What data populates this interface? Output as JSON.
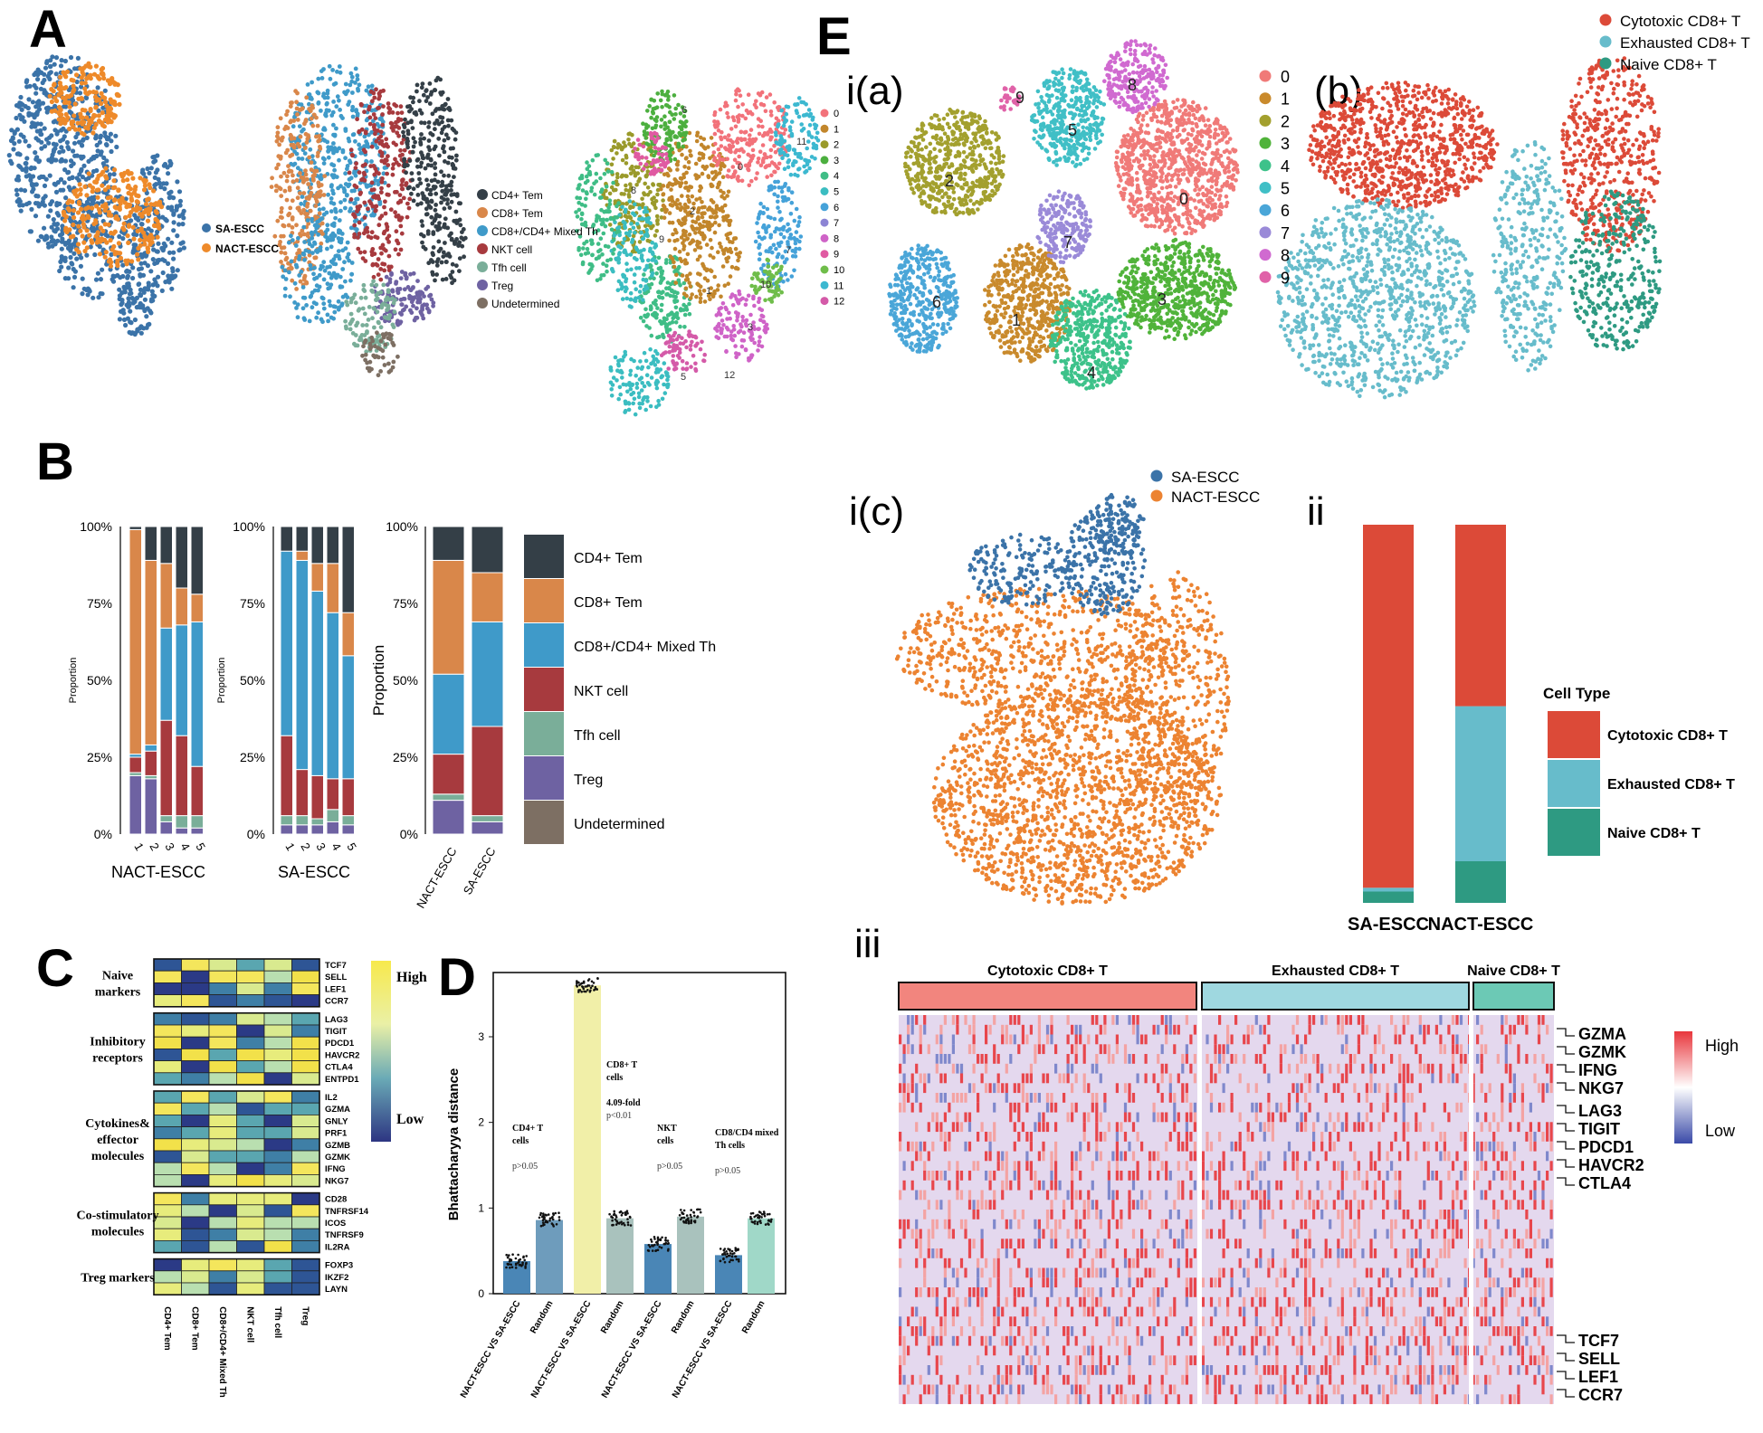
{
  "panels": {
    "A": {
      "letter": "A",
      "groups_legend": [
        "SA-ESCC",
        "NACT-ESCC"
      ],
      "celltype_legend": [
        "CD4+ Tem",
        "CD8+ Tem",
        "CD8+/CD4+ Mixed Th",
        "NKT cell",
        "Tfh cell",
        "Treg",
        "Undetermined"
      ],
      "cluster_legend": [
        "0",
        "1",
        "2",
        "3",
        "4",
        "5",
        "6",
        "7",
        "8",
        "9",
        "10",
        "11",
        "12"
      ]
    },
    "B": {
      "letter": "B",
      "yticks": [
        "100%",
        "75%",
        "50%",
        "25%",
        "0%"
      ],
      "ylabel_small": "Proportion",
      "ylabel_large": "Proportion",
      "nact_xticks": [
        "1",
        "2",
        "3",
        "4",
        "5"
      ],
      "nact_label": "NACT-ESCC",
      "sa_xticks": [
        "1",
        "2",
        "3",
        "4",
        "5"
      ],
      "sa_label": "SA-ESCC",
      "group_xticks": [
        "NACT-ESCC",
        "SA-ESCC"
      ],
      "legend": [
        "CD4+ Tem",
        "CD8+ Tem",
        "CD8+/CD4+ Mixed Th",
        "NKT cell",
        "Tfh cell",
        "Treg",
        "Undetermined"
      ]
    },
    "C": {
      "letter": "C",
      "groups": [
        {
          "title": [
            "Naive",
            "markers"
          ],
          "genes": [
            "TCF7",
            "SELL",
            "LEF1",
            "CCR7"
          ]
        },
        {
          "title": [
            "Inhibitory",
            "receptors"
          ],
          "genes": [
            "LAG3",
            "TIGIT",
            "PDCD1",
            "HAVCR2",
            "CTLA4",
            "ENTPD1"
          ]
        },
        {
          "title": [
            "Cytokines&",
            "effector",
            "molecules"
          ],
          "genes": [
            "IL2",
            "GZMA",
            "GNLY",
            "PRF1",
            "GZMB",
            "GZMK",
            "IFNG",
            "NKG7"
          ]
        },
        {
          "title": [
            "Co-stimulatory",
            "molecules"
          ],
          "genes": [
            "CD28",
            "TNFRSF14",
            "ICOS",
            "TNFRSF9",
            "IL2RA"
          ]
        },
        {
          "title": [
            "Treg markers"
          ],
          "genes": [
            "FOXP3",
            "IKZF2",
            "LAYN"
          ]
        }
      ],
      "columns": [
        "CD4+ Tem",
        "CD8+ Tem",
        "CD8+/CD4+ Mixed Th",
        "NKT cell",
        "Tfh cell",
        "Treg"
      ],
      "legend_high": "High",
      "legend_low": "Low"
    },
    "D": {
      "letter": "D",
      "ylabel": "Bhattacharyya distance",
      "yticks": [
        "0",
        "1",
        "2",
        "3"
      ],
      "xticks": [
        "NACT-ESCC VS SA-ESCC",
        "Random",
        "NACT-ESCC VS SA-ESCC",
        "Random",
        "NACT-ESCC VS SA-ESCC",
        "Random",
        "NACT-ESCC VS SA-ESCC",
        "Random"
      ],
      "annotations": [
        {
          "lines": [
            "CD4+ T",
            "cells"
          ],
          "p": "p>0.05"
        },
        {
          "lines": [
            "CD8+ T",
            "cells"
          ],
          "fold": "4.09-fold",
          "p": "p<0.01"
        },
        {
          "lines": [
            "NKT",
            "cells"
          ],
          "p": "p>0.05"
        },
        {
          "lines": [
            "CD8/CD4 mixed",
            "Th cells"
          ],
          "p": "p>0.05"
        }
      ]
    },
    "E": {
      "letter": "E",
      "sub_ia": "i(a)",
      "sub_ib": "(b)",
      "sub_ic": "i(c)",
      "sub_ii": "ii",
      "sub_iii": "iii",
      "cluster_legend": [
        "0",
        "1",
        "2",
        "3",
        "4",
        "5",
        "6",
        "7",
        "8",
        "9"
      ],
      "celltype_legend": [
        "Cytotoxic CD8+ T",
        "Exhausted CD8+ T",
        "Naive CD8+ T"
      ],
      "group_legend": [
        "SA-ESCC",
        "NACT-ESCC"
      ],
      "ii_legend_title": "Cell Type",
      "ii_legend": [
        "Cytotoxic CD8+ T",
        "Exhausted CD8+ T",
        "Naive CD8+ T"
      ],
      "ii_xticks": [
        "SA-ESCC",
        "NACT-ESCC"
      ],
      "heatmap_headers": [
        "Cytotoxic CD8+ T",
        "Exhausted CD8+ T",
        "Naive CD8+ T"
      ],
      "heatmap_genes": [
        "GZMA",
        "GZMK",
        "IFNG",
        "NKG7",
        "LAG3",
        "TIGIT",
        "PDCD1",
        "HAVCR2",
        "CTLA4",
        "TCF7",
        "SELL",
        "LEF1",
        "CCR7"
      ],
      "heatmap_high": "High",
      "heatmap_low": "Low"
    }
  },
  "chart_data": [
    {
      "type": "bar",
      "title": "",
      "xlabel": "NACT-ESCC",
      "ylabel": "Proportion",
      "categories": [
        "1",
        "2",
        "3",
        "4",
        "5"
      ],
      "ylim": [
        0,
        100
      ],
      "series": [
        {
          "name": "Treg",
          "values": [
            19,
            18,
            4,
            2,
            2
          ]
        },
        {
          "name": "Tfh cell",
          "values": [
            1,
            1,
            2,
            4,
            4
          ]
        },
        {
          "name": "NKT cell",
          "values": [
            5,
            8,
            31,
            26,
            16
          ]
        },
        {
          "name": "CD8+/CD4+ Mixed Th",
          "values": [
            1,
            2,
            30,
            36,
            47
          ]
        },
        {
          "name": "CD8+ Tem",
          "values": [
            73,
            60,
            21,
            12,
            9
          ]
        },
        {
          "name": "CD4+ Tem",
          "values": [
            1,
            11,
            12,
            20,
            22
          ]
        }
      ]
    },
    {
      "type": "bar",
      "title": "",
      "xlabel": "SA-ESCC",
      "ylabel": "Proportion",
      "categories": [
        "1",
        "2",
        "3",
        "4",
        "5"
      ],
      "ylim": [
        0,
        100
      ],
      "series": [
        {
          "name": "Treg",
          "values": [
            3,
            3,
            3,
            4,
            3
          ]
        },
        {
          "name": "Tfh cell",
          "values": [
            3,
            3,
            2,
            4,
            3
          ]
        },
        {
          "name": "NKT cell",
          "values": [
            26,
            15,
            14,
            10,
            12
          ]
        },
        {
          "name": "CD8+/CD4+ Mixed Th",
          "values": [
            60,
            68,
            60,
            54,
            40
          ]
        },
        {
          "name": "CD8+ Tem",
          "values": [
            0,
            3,
            9,
            16,
            14
          ]
        },
        {
          "name": "CD4+ Tem",
          "values": [
            8,
            8,
            12,
            12,
            28
          ]
        }
      ]
    },
    {
      "type": "bar",
      "title": "",
      "xlabel": "",
      "ylabel": "Proportion",
      "categories": [
        "NACT-ESCC",
        "SA-ESCC"
      ],
      "ylim": [
        0,
        100
      ],
      "series": [
        {
          "name": "Treg",
          "values": [
            11,
            4
          ]
        },
        {
          "name": "Tfh cell",
          "values": [
            2,
            2
          ]
        },
        {
          "name": "NKT cell",
          "values": [
            13,
            29
          ]
        },
        {
          "name": "CD8+/CD4+ Mixed Th",
          "values": [
            26,
            34
          ]
        },
        {
          "name": "CD8+ Tem",
          "values": [
            37,
            16
          ]
        },
        {
          "name": "CD4+ Tem",
          "values": [
            11,
            15
          ]
        }
      ]
    },
    {
      "type": "bar",
      "title": "",
      "xlabel": "",
      "ylabel": "Bhattacharyya distance",
      "categories": [
        "NACT-ESCC VS SA-ESCC",
        "Random",
        "NACT-ESCC VS SA-ESCC",
        "Random",
        "NACT-ESCC VS SA-ESCC",
        "Random",
        "NACT-ESCC VS SA-ESCC",
        "Random"
      ],
      "values": [
        0.38,
        0.86,
        3.6,
        0.88,
        0.58,
        0.9,
        0.45,
        0.88
      ],
      "ylim": [
        0,
        3.75
      ]
    },
    {
      "type": "bar",
      "title": "",
      "xlabel": "",
      "ylabel": "",
      "categories": [
        "SA-ESCC",
        "NACT-ESCC"
      ],
      "ylim": [
        0,
        100
      ],
      "series": [
        {
          "name": "Naive CD8+ T",
          "values": [
            3,
            11
          ]
        },
        {
          "name": "Exhausted CD8+ T",
          "values": [
            1,
            41
          ]
        },
        {
          "name": "Cytotoxic CD8+ T",
          "values": [
            96,
            48
          ]
        }
      ]
    }
  ]
}
